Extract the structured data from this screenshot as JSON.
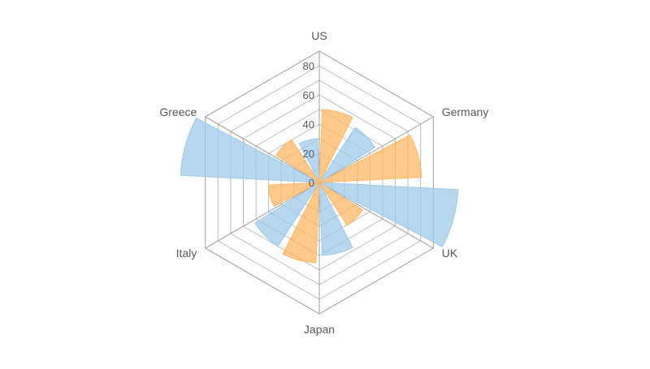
{
  "chart_data": {
    "type": "polar-column",
    "categories": [
      "US",
      "Germany",
      "UK",
      "Japan",
      "Italy",
      "Greece"
    ],
    "rticks": [
      0,
      20,
      40,
      60,
      80
    ],
    "rmax": 90,
    "grid": true,
    "series": [
      {
        "color": "#9fc9ea",
        "values": [
          30,
          45,
          95,
          50,
          52,
          95
        ]
      },
      {
        "color": "#ffb766",
        "values": [
          50,
          70,
          35,
          55,
          35,
          35
        ]
      }
    ]
  }
}
